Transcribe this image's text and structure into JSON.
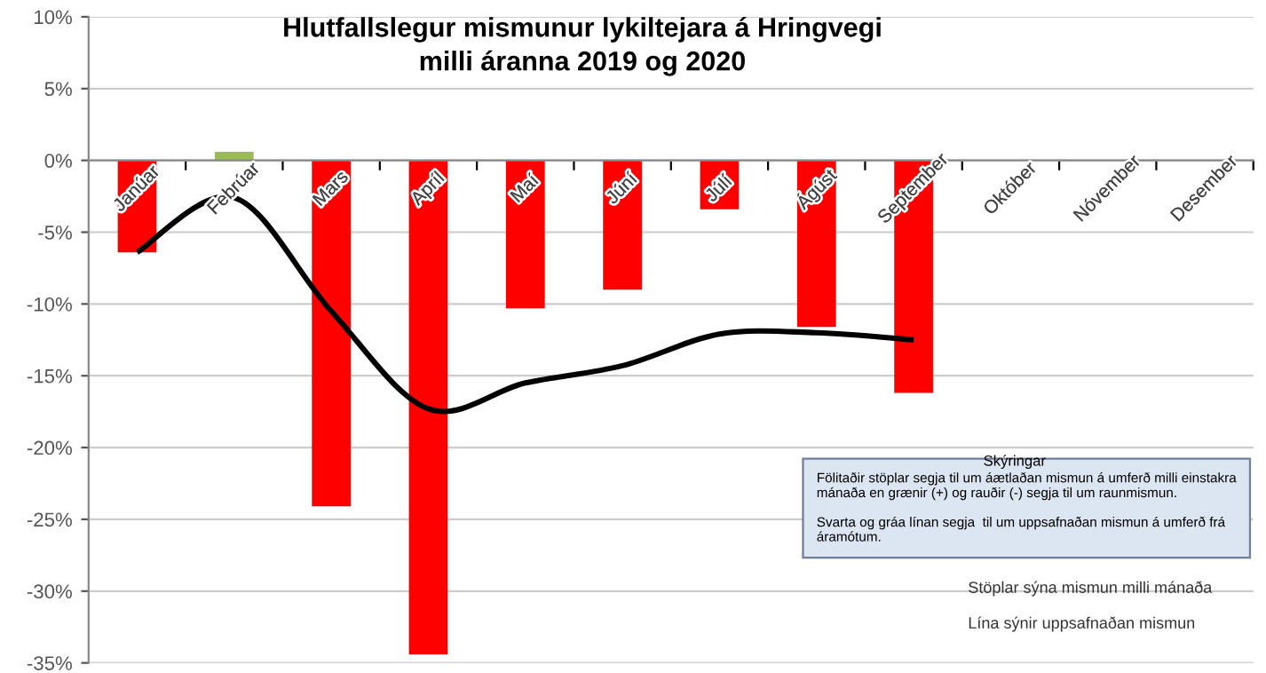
{
  "chart_data": {
    "type": "bar",
    "title": "Hlutfallslegur mismunur lykiltejara á Hringvegi\nmilli áranna 2019 og 2020",
    "categories": [
      "Janúar",
      "Febrúar",
      "Mars",
      "Apríl",
      "Maí",
      "Júní",
      "Júlí",
      "Ágúst",
      "September",
      "Október",
      "Nóvember",
      "Desember"
    ],
    "series": [
      {
        "colors": [
          "#ff0000",
          "#9bbb59",
          "#ff0000",
          "#ff0000",
          "#ff0000",
          "#ff0000",
          "#ff0000",
          "#ff0000",
          "#ff0000",
          null,
          null,
          null
        ],
        "values": [
          -6.4,
          0.6,
          -24.1,
          -34.4,
          -10.3,
          -9.0,
          -3.4,
          -11.6,
          -16.2,
          null,
          null,
          null
        ]
      },
      {
        "type": "line",
        "color": "#000000",
        "values": [
          -6.4,
          -2.6,
          -10.5,
          -17.3,
          -15.5,
          -14.3,
          -12.1,
          -12.0,
          -12.5,
          null,
          null,
          null
        ]
      }
    ],
    "ylim": [
      -35,
      10
    ],
    "yticks": [
      {
        "value": -35,
        "label": "-35%"
      },
      {
        "value": -30,
        "label": "-30%"
      },
      {
        "value": -25,
        "label": "-25%"
      },
      {
        "value": -20,
        "label": "-20%"
      },
      {
        "value": -15,
        "label": "-15%"
      },
      {
        "value": -10,
        "label": "-10%"
      },
      {
        "value": -5,
        "label": "-5%"
      },
      {
        "value": 0,
        "label": "0%"
      },
      {
        "value": 5,
        "label": "5%"
      },
      {
        "value": 10,
        "label": "10%"
      }
    ],
    "grid": "y",
    "legend": false,
    "line_style": "solid",
    "marker": "none",
    "annotations": [
      "Skýringar",
      "Fölitaðir stöplar segja til um áætlaðan mismun á umferð milli einstakra mánaða en grænir (+) og rauðir (-) segja til um raunmismun.\n\nSvarta og gráa línan segja  til um uppsafnaðan mismun á umferð frá áramótum.",
      "Stöplar sýna mismun milli mánaða",
      "Lína sýnir uppsafnaðan mismun"
    ]
  }
}
